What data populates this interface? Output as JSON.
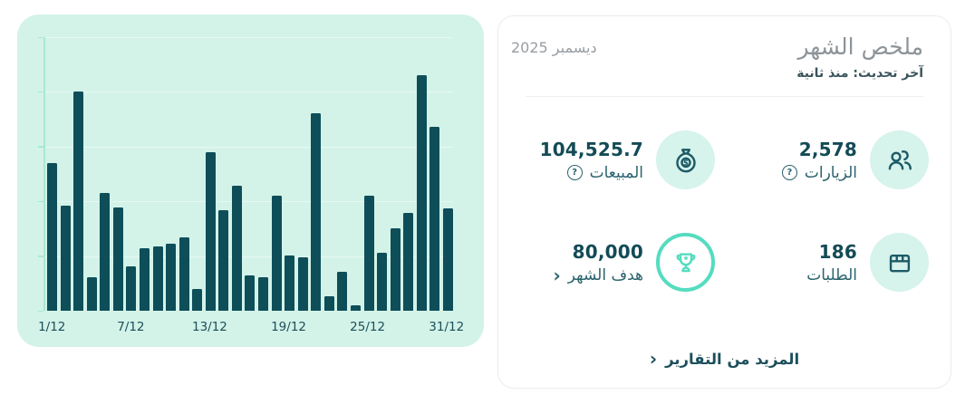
{
  "colors": {
    "chart_card_bg": "#d3f3e9",
    "bar": "#0e4e59",
    "axis": "#a9e7d4",
    "x_tick_label": "#1d4e58",
    "value_dark_teal": "#134b56",
    "label_teal": "#2a636e",
    "mint_circle_bg": "#d6f3ec",
    "icon_stroke": "#1d5b66",
    "turquoise_accent": "#55dcc0",
    "title_gray": "#8d9499",
    "subtitle_dark": "#3a545c",
    "date_gray": "#979ea3",
    "card_border": "#eaecee",
    "link_teal": "#1c4f5c"
  },
  "chart_data": {
    "type": "bar",
    "title": "",
    "xlabel": "",
    "ylabel": "",
    "categories": [
      "1/12",
      "2/12",
      "3/12",
      "4/12",
      "5/12",
      "6/12",
      "7/12",
      "8/12",
      "9/12",
      "10/12",
      "11/12",
      "12/12",
      "13/12",
      "14/12",
      "15/12",
      "16/12",
      "17/12",
      "18/12",
      "19/12",
      "20/12",
      "21/12",
      "22/12",
      "23/12",
      "24/12",
      "25/12",
      "26/12",
      "27/12",
      "28/12",
      "29/12",
      "30/12",
      "31/12"
    ],
    "values": [
      5400,
      3850,
      8000,
      1230,
      4290,
      3780,
      1630,
      2290,
      2360,
      2460,
      2690,
      780,
      5800,
      3690,
      4580,
      1290,
      1220,
      4220,
      2030,
      1970,
      7210,
      530,
      1440,
      200,
      4190,
      2110,
      3000,
      3580,
      8620,
      6730,
      3740
    ],
    "ylim": [
      0,
      10000
    ],
    "x_ticks": [
      {
        "day": 1,
        "label": "1/12"
      },
      {
        "day": 7,
        "label": "7/12"
      },
      {
        "day": 13,
        "label": "13/12"
      },
      {
        "day": 19,
        "label": "19/12"
      },
      {
        "day": 25,
        "label": "25/12"
      },
      {
        "day": 31,
        "label": "31/12"
      }
    ],
    "grid": "faint horizontal gridlines at 5 unlabeled y-tick levels",
    "legend": "none",
    "note": "y-axis ticks are unlabeled; daily values estimated from bar heights (axis max ~10000), consistent with monthly sales total 104,525.7"
  },
  "summary_card": {
    "title": "ملخص الشهر",
    "subtitle": "آخر تحديث: منذ ثانية",
    "period": "ديسمبر 2025",
    "stats": [
      {
        "id": "visits",
        "value": "2,578",
        "label": "الزيارات",
        "icon": "users-icon",
        "has_help": true,
        "has_chevron": false
      },
      {
        "id": "sales",
        "value": "104,525.7",
        "label": "المبيعات",
        "icon": "money-bag-icon",
        "has_help": true,
        "has_chevron": false
      },
      {
        "id": "orders",
        "value": "186",
        "label": "الطلبات",
        "icon": "package-icon",
        "has_help": false,
        "has_chevron": false
      },
      {
        "id": "goal",
        "value": "80,000",
        "label": "هدف الشهر",
        "icon": "trophy-icon",
        "has_help": false,
        "has_chevron": true
      }
    ],
    "help_glyph": "?",
    "chevron_glyph": "‹",
    "more_link": "المزيد من التقارير"
  }
}
